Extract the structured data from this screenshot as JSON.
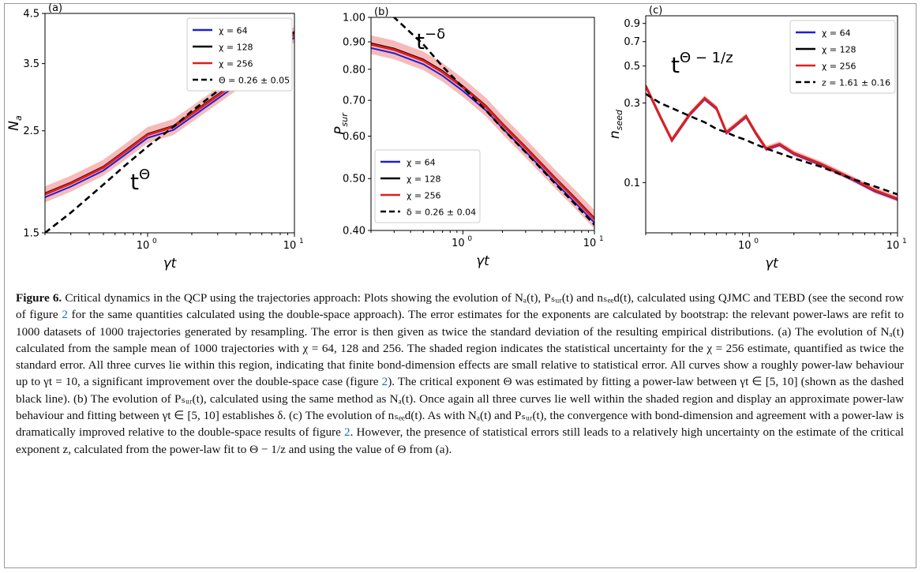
{
  "figure": {
    "panels": [
      {
        "label": "(a)",
        "ylabel_main": "N",
        "ylabel_sub": "a",
        "xlabel": "γt",
        "y_ticks": [
          "1.5",
          "2.5",
          "3.5",
          "4.5"
        ],
        "x_ticks": [
          "10",
          "10"
        ],
        "x_tick_exps": [
          "0",
          "1"
        ],
        "annotation_base": "t",
        "annotation_exp": "Θ",
        "legend": [
          "χ = 64",
          "χ = 128",
          "χ = 256",
          "Θ = 0.26 ± 0.05"
        ]
      },
      {
        "label": "(b)",
        "ylabel_main": "P",
        "ylabel_sub": "sur",
        "xlabel": "γt",
        "y_ticks": [
          "0.40",
          "0.50",
          "0.60",
          "0.70",
          "0.80",
          "0.90",
          "1.00"
        ],
        "x_ticks": [
          "10",
          "10"
        ],
        "x_tick_exps": [
          "0",
          "1"
        ],
        "annotation_base": "t",
        "annotation_exp": "−δ",
        "legend": [
          "χ = 64",
          "χ = 128",
          "χ = 256",
          "δ = 0.26 ± 0.04"
        ]
      },
      {
        "label": "(c)",
        "ylabel_main": "n",
        "ylabel_sub": "seed",
        "xlabel": "γt",
        "y_ticks": [
          "0.1",
          "0.3",
          "0.5",
          "0.7",
          "0.9"
        ],
        "x_ticks": [
          "10",
          "10"
        ],
        "x_tick_exps": [
          "0",
          "1"
        ],
        "annotation_base": "t",
        "annotation_exp": "Θ − 1/z",
        "legend": [
          "χ = 64",
          "χ = 128",
          "χ = 256",
          "z = 1.61 ± 0.16"
        ]
      }
    ],
    "colors": {
      "chi64": "#1f1fd6",
      "chi128": "#000000",
      "chi256": "#dd1f1f",
      "band": "#f4a3a3",
      "fit": "#000000"
    }
  },
  "chart_data": [
    {
      "type": "line",
      "x": [
        0.2,
        0.3,
        0.5,
        0.7,
        1,
        1.5,
        2,
        3,
        5,
        7,
        10
      ],
      "series": [
        {
          "name": "χ = 256",
          "values": [
            1.82,
            1.92,
            2.08,
            2.25,
            2.45,
            2.55,
            2.72,
            2.98,
            3.35,
            3.7,
            4.05
          ]
        },
        {
          "name": "Θ = 0.26 ± 0.05",
          "values": [
            1.5,
            1.66,
            1.91,
            2.1,
            2.31,
            2.55,
            2.76,
            3.05,
            3.45,
            3.78,
            4.1
          ]
        }
      ],
      "xscale": "log",
      "xlim": [
        0.2,
        10
      ],
      "ylim": [
        1.5,
        4.5
      ],
      "yscale": "log"
    },
    {
      "type": "line",
      "x": [
        0.2,
        0.3,
        0.5,
        0.7,
        1,
        1.5,
        2,
        3,
        5,
        7,
        10
      ],
      "series": [
        {
          "name": "χ = 256",
          "values": [
            0.89,
            0.87,
            0.83,
            0.79,
            0.74,
            0.68,
            0.63,
            0.57,
            0.5,
            0.46,
            0.42
          ]
        },
        {
          "name": "δ = 0.26 ± 0.04",
          "values": [
            1.1,
            1.0,
            0.89,
            0.81,
            0.74,
            0.67,
            0.62,
            0.56,
            0.49,
            0.45,
            0.41
          ]
        }
      ],
      "xscale": "log",
      "xlim": [
        0.2,
        10
      ],
      "ylim": [
        0.4,
        1.0
      ],
      "yscale": "log"
    },
    {
      "type": "line",
      "x": [
        0.2,
        0.25,
        0.3,
        0.4,
        0.5,
        0.6,
        0.7,
        0.8,
        0.95,
        1.1,
        1.3,
        1.6,
        2,
        3,
        5,
        7,
        10
      ],
      "series": [
        {
          "name": "χ = 256",
          "values": [
            0.38,
            0.25,
            0.18,
            0.26,
            0.32,
            0.28,
            0.2,
            0.22,
            0.25,
            0.2,
            0.16,
            0.17,
            0.15,
            0.13,
            0.105,
            0.09,
            0.08
          ]
        },
        {
          "name": "z = 1.61 ± 0.16",
          "values": [
            0.34,
            0.3,
            0.28,
            0.25,
            0.23,
            0.21,
            0.2,
            0.19,
            0.18,
            0.17,
            0.16,
            0.15,
            0.14,
            0.125,
            0.105,
            0.095,
            0.085
          ]
        }
      ],
      "xscale": "log",
      "xlim": [
        0.2,
        10
      ],
      "ylim": [
        0.05,
        1.0
      ],
      "yscale": "log"
    }
  ],
  "caption": {
    "p1_label": "Figure 6.",
    "p1_text": " Critical dynamics in the QCP using the trajectories approach: Plots showing the evolution of Nₐ(t), Pₛᵤᵣ(t) and nₛₑₑd(t), calculated using QJMC and TEBD (see the second row of figure ",
    "ref1": "2",
    "p2_text": " for the same quantities calculated using the double-space approach). The error estimates for the exponents are calculated by bootstrap: the relevant power-laws are refit to 1000 datasets of 1000 trajectories generated by resampling. The error is then given as twice the standard deviation of the resulting empirical distributions. (a) The evolution of Nₐ(t) calculated from the sample mean of 1000 trajectories with χ = 64, 128 and 256. The shaded region indicates the statistical uncertainty for the χ = 256 estimate, quantified as twice the standard error. All three curves lie within this region, indicating that finite bond-dimension effects are small relative to statistical error. All curves show a roughly power-law behaviour up to γt = 10, a significant improvement over the double-space case (figure ",
    "ref2": "2",
    "p3_text": "). The critical exponent Θ was estimated by fitting a power-law between γt ∈ [5, 10] (shown as the dashed black line). (b) The evolution of Pₛᵤᵣ(t), calculated using the same method as Nₐ(t). Once again all three curves lie well within the shaded region and display an approximate power-law behaviour and fitting between γt ∈ [5, 10] establishes δ. (c) The evolution of nₛₑₑd(t). As with Nₐ(t) and Pₛᵤᵣ(t), the convergence with bond-dimension and agreement with a power-law is dramatically improved relative to the double-space results of figure ",
    "ref3": "2",
    "p4_text": ". However, the presence of statistical errors still leads to a relatively high uncertainty on the estimate of the critical exponent z, calculated from the power-law fit to Θ − 1/z and using the value of Θ from (a)."
  }
}
